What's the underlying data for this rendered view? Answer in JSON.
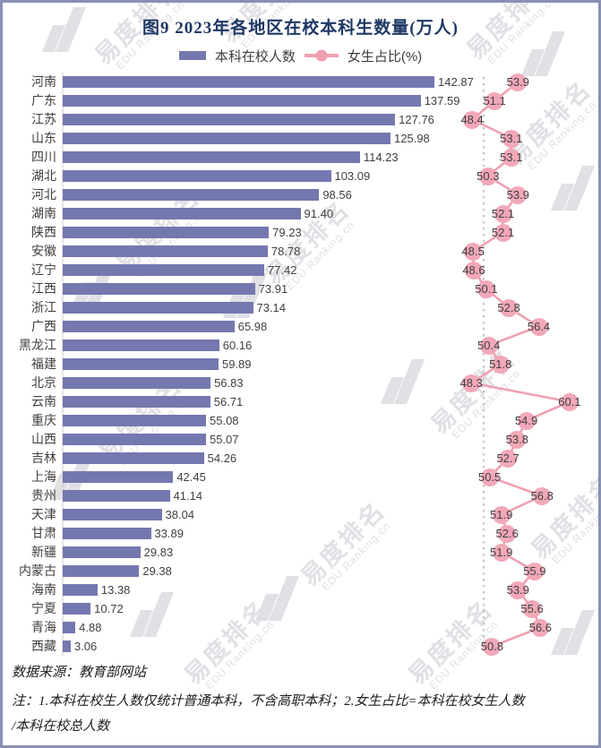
{
  "title": "图9 2023年各地区在校本科生数量(万人)",
  "legend": {
    "bar_label": "本科在校人数",
    "line_label": "女生占比(%)"
  },
  "footer": {
    "source": "数据来源：教育部网站",
    "note_line1": "注：1.本科在校生人数仅统计普通本科，不含高职本科；2.女生占比=本科在校女生人数",
    "note_line2": "/本科在校总人数"
  },
  "watermark": {
    "cn": "易度排名",
    "en": "EDU Ranking.cn"
  },
  "colors": {
    "bar": "#7478ae",
    "line": "#f0a0b2",
    "dot": "#f2a8b8",
    "title": "#1f3864",
    "text": "#404040",
    "frame": "#8a8fb5",
    "ref_line": "#c6c6c6",
    "axis_line": "#c9c9c9",
    "watermark": "#e0e0e5"
  },
  "chart_data": {
    "type": "bar",
    "orientation": "horizontal",
    "title": "图9 2023年各地区在校本科生数量(万人)",
    "bar_series_name": "本科在校人数",
    "bar_unit": "万人",
    "line_series_name": "女生占比(%)",
    "reference_line_pct": 50,
    "value_axis_visible": false,
    "legend_position": "top",
    "categories": [
      "河南",
      "广东",
      "江苏",
      "山东",
      "四川",
      "湖北",
      "河北",
      "湖南",
      "陕西",
      "安徽",
      "辽宁",
      "江西",
      "浙江",
      "广西",
      "黑龙江",
      "福建",
      "北京",
      "云南",
      "重庆",
      "山西",
      "吉林",
      "上海",
      "贵州",
      "天津",
      "甘肃",
      "新疆",
      "内蒙古",
      "海南",
      "宁夏",
      "青海",
      "西藏"
    ],
    "bar_values": [
      142.87,
      137.59,
      127.76,
      125.98,
      114.23,
      103.09,
      98.56,
      91.4,
      79.23,
      78.78,
      77.42,
      73.91,
      73.14,
      65.98,
      60.16,
      59.89,
      56.83,
      56.71,
      55.08,
      55.07,
      54.26,
      42.45,
      41.14,
      38.04,
      33.89,
      29.83,
      29.38,
      13.38,
      10.72,
      4.88,
      3.06
    ],
    "line_values": [
      53.9,
      51.1,
      48.4,
      53.1,
      53.1,
      50.3,
      53.9,
      52.1,
      52.1,
      48.5,
      48.6,
      50.1,
      52.8,
      56.4,
      50.4,
      51.8,
      48.3,
      60.1,
      54.9,
      53.8,
      52.7,
      50.5,
      56.8,
      51.9,
      52.6,
      51.9,
      55.9,
      53.9,
      55.6,
      56.6,
      50.8
    ]
  }
}
